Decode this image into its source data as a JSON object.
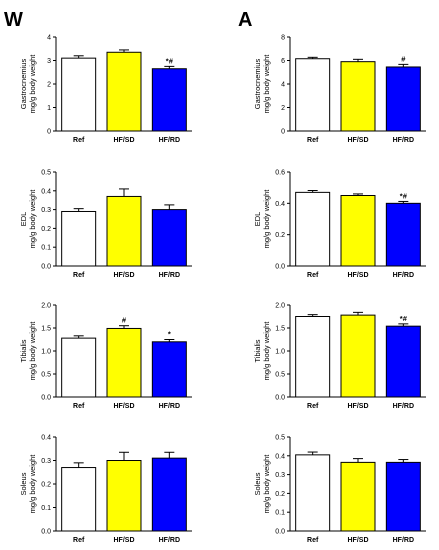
{
  "panel_letters": [
    "W",
    "A"
  ],
  "chart_data": [
    {
      "type": "bar",
      "title": "",
      "panel": "W",
      "row": 0,
      "categories": [
        "Ref",
        "HF/SD",
        "HF/RD"
      ],
      "values": [
        3.1,
        3.35,
        2.65
      ],
      "errors": [
        0.1,
        0.1,
        0.1
      ],
      "annotations": [
        "",
        "",
        "*#"
      ],
      "ylabel": [
        "Gastrocnemius",
        "mg/g body weight"
      ],
      "ylim": [
        0,
        4
      ],
      "yticks": [
        0,
        1,
        2,
        3,
        4
      ],
      "colors": [
        "#ffffff",
        "#ffff00",
        "#0000ff"
      ],
      "grid": false
    },
    {
      "type": "bar",
      "title": "",
      "panel": "A",
      "row": 0,
      "categories": [
        "Ref",
        "HF/SD",
        "HF/RD"
      ],
      "values": [
        6.15,
        5.9,
        5.45
      ],
      "errors": [
        0.12,
        0.2,
        0.22
      ],
      "annotations": [
        "",
        "",
        "#"
      ],
      "ylabel": [
        "Gastrocnemius",
        "mg/g body weight"
      ],
      "ylim": [
        0,
        8
      ],
      "yticks": [
        0,
        2,
        4,
        6,
        8
      ],
      "colors": [
        "#ffffff",
        "#ffff00",
        "#0000ff"
      ],
      "grid": false
    },
    {
      "type": "bar",
      "title": "",
      "panel": "W",
      "row": 1,
      "categories": [
        "Ref",
        "HF/SD",
        "HF/RD"
      ],
      "values": [
        0.29,
        0.37,
        0.3
      ],
      "errors": [
        0.015,
        0.04,
        0.025
      ],
      "annotations": [
        "",
        "",
        ""
      ],
      "ylabel": [
        "EDL",
        "mg/g body weight"
      ],
      "ylim": [
        0,
        0.5
      ],
      "yticks": [
        0.0,
        0.1,
        0.2,
        0.3,
        0.4,
        0.5
      ],
      "colors": [
        "#ffffff",
        "#ffff00",
        "#0000ff"
      ],
      "grid": false
    },
    {
      "type": "bar",
      "title": "",
      "panel": "A",
      "row": 1,
      "categories": [
        "Ref",
        "HF/SD",
        "HF/RD"
      ],
      "values": [
        0.47,
        0.45,
        0.4
      ],
      "errors": [
        0.012,
        0.01,
        0.012
      ],
      "annotations": [
        "",
        "",
        "*#"
      ],
      "ylabel": [
        "EDL",
        "mg/g body weight"
      ],
      "ylim": [
        0,
        0.6
      ],
      "yticks": [
        0.0,
        0.2,
        0.4,
        0.6
      ],
      "colors": [
        "#ffffff",
        "#ffff00",
        "#0000ff"
      ],
      "grid": false
    },
    {
      "type": "bar",
      "title": "",
      "panel": "W",
      "row": 2,
      "categories": [
        "Ref",
        "HF/SD",
        "HF/RD"
      ],
      "values": [
        1.28,
        1.49,
        1.2
      ],
      "errors": [
        0.05,
        0.06,
        0.05
      ],
      "annotations": [
        "",
        "#",
        "*"
      ],
      "ylabel": [
        "Tibialis",
        "mg/g body weight"
      ],
      "ylim": [
        0,
        2.0
      ],
      "yticks": [
        0.0,
        0.5,
        1.0,
        1.5,
        2.0
      ],
      "colors": [
        "#ffffff",
        "#ffff00",
        "#0000ff"
      ],
      "grid": false
    },
    {
      "type": "bar",
      "title": "",
      "panel": "A",
      "row": 2,
      "categories": [
        "Ref",
        "HF/SD",
        "HF/RD"
      ],
      "values": [
        1.75,
        1.78,
        1.54
      ],
      "errors": [
        0.04,
        0.06,
        0.05
      ],
      "annotations": [
        "",
        "",
        "*#"
      ],
      "ylabel": [
        "Tibialis",
        "mg/g body weight"
      ],
      "ylim": [
        0,
        2.0
      ],
      "yticks": [
        0.0,
        0.5,
        1.0,
        1.5,
        2.0
      ],
      "colors": [
        "#ffffff",
        "#ffff00",
        "#0000ff"
      ],
      "grid": false
    },
    {
      "type": "bar",
      "title": "",
      "panel": "W",
      "row": 3,
      "categories": [
        "Ref",
        "HF/SD",
        "HF/RD"
      ],
      "values": [
        0.27,
        0.3,
        0.31
      ],
      "errors": [
        0.02,
        0.035,
        0.025
      ],
      "annotations": [
        "",
        "",
        ""
      ],
      "ylabel": [
        "Soleus",
        "mg/g body weight"
      ],
      "ylim": [
        0,
        0.4
      ],
      "yticks": [
        0.0,
        0.1,
        0.2,
        0.3,
        0.4
      ],
      "colors": [
        "#ffffff",
        "#ffff00",
        "#0000ff"
      ],
      "grid": false
    },
    {
      "type": "bar",
      "title": "",
      "panel": "A",
      "row": 3,
      "categories": [
        "Ref",
        "HF/SD",
        "HF/RD"
      ],
      "values": [
        0.405,
        0.365,
        0.365
      ],
      "errors": [
        0.015,
        0.02,
        0.015
      ],
      "annotations": [
        "",
        "",
        ""
      ],
      "ylabel": [
        "Soleus",
        "mg/g body weight"
      ],
      "ylim": [
        0,
        0.5
      ],
      "yticks": [
        0.0,
        0.1,
        0.2,
        0.3,
        0.4,
        0.5
      ],
      "colors": [
        "#ffffff",
        "#ffff00",
        "#0000ff"
      ],
      "grid": false
    }
  ]
}
